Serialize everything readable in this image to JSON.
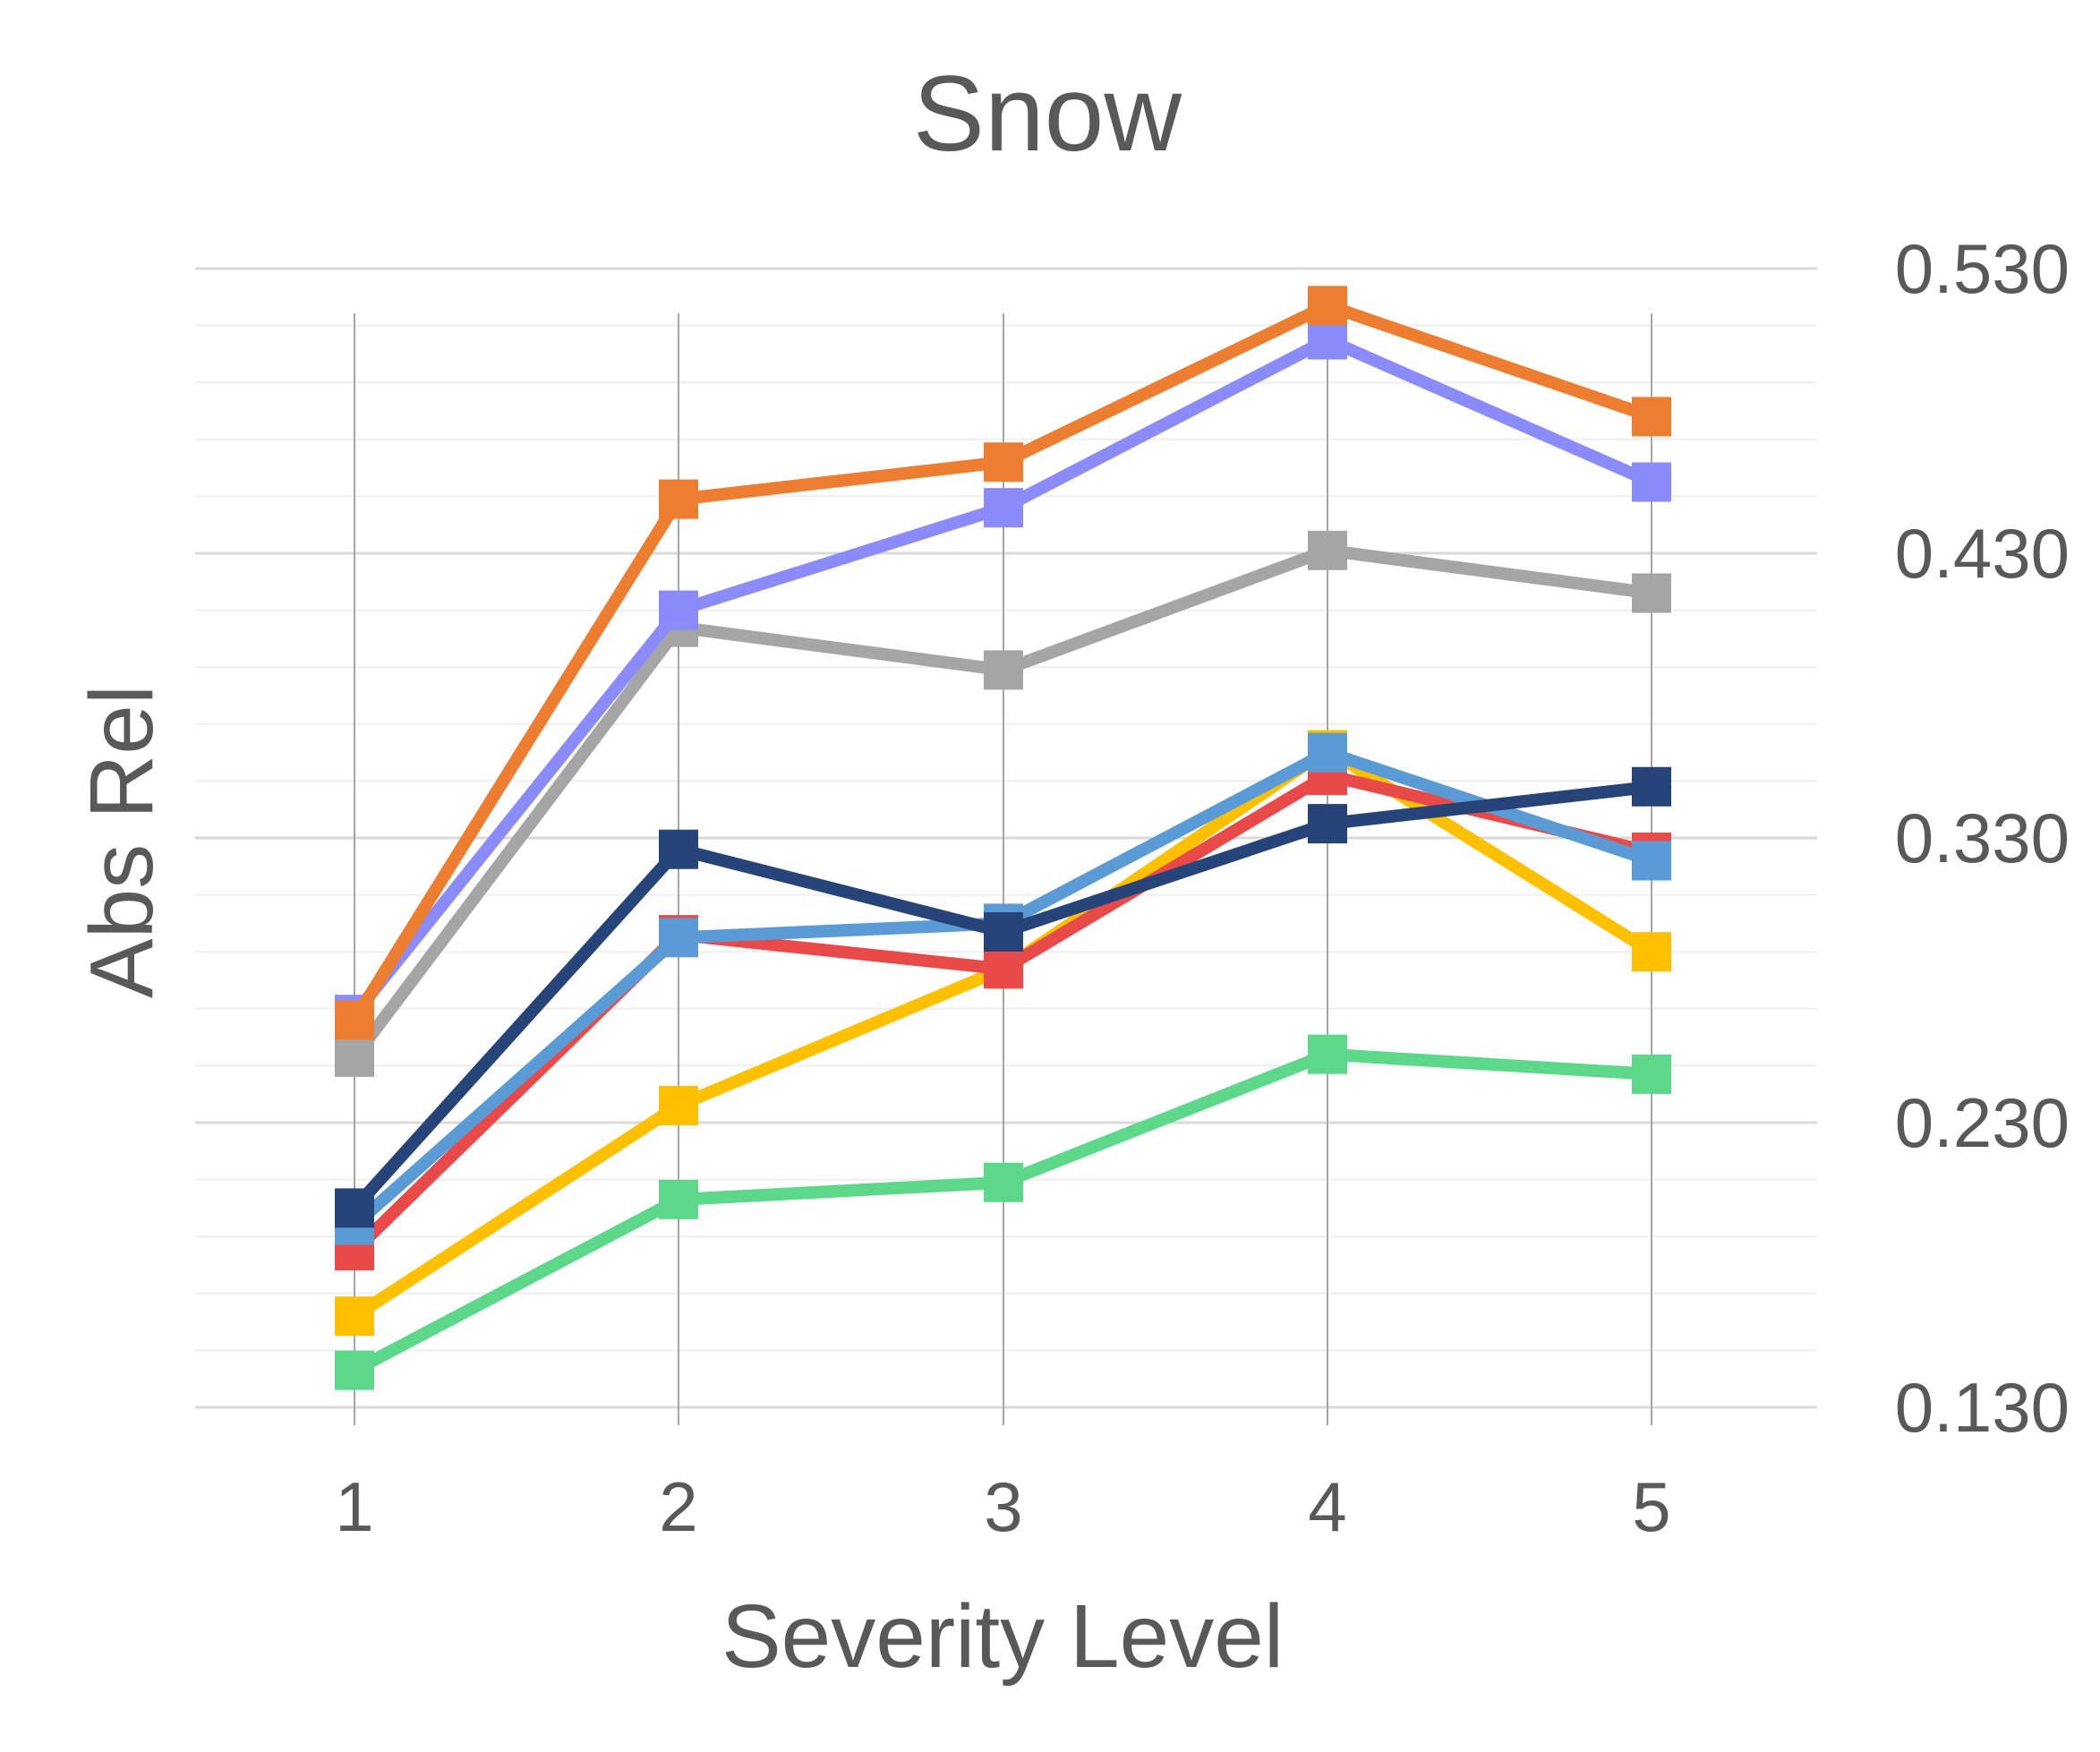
{
  "chart_data": {
    "type": "line",
    "title": "Snow",
    "xlabel": "Severity Level",
    "ylabel": "Abs Rel",
    "categories": [
      "1",
      "2",
      "3",
      "4",
      "5"
    ],
    "y_ticks": [
      "0.130",
      "0.230",
      "0.330",
      "0.430",
      "0.530"
    ],
    "ylim": [
      0.13,
      0.53
    ],
    "y_axis_side": "right",
    "grid": true,
    "legend": "none",
    "series": [
      {
        "color": "#ED7D31",
        "values": [
          0.266,
          0.449,
          0.462,
          0.517,
          0.478
        ]
      },
      {
        "color": "#8B8BFB",
        "values": [
          0.268,
          0.41,
          0.446,
          0.505,
          0.455
        ]
      },
      {
        "color": "#A5A5A5",
        "values": [
          0.253,
          0.404,
          0.389,
          0.431,
          0.416
        ]
      },
      {
        "color": "#264478",
        "values": [
          0.2,
          0.326,
          0.297,
          0.335,
          0.348
        ]
      },
      {
        "color": "#5B9BD5",
        "values": [
          0.194,
          0.295,
          0.3,
          0.36,
          0.322
        ]
      },
      {
        "color": "#E84A4A",
        "values": [
          0.185,
          0.296,
          0.284,
          0.352,
          0.325
        ]
      },
      {
        "color": "#FFC000",
        "values": [
          0.162,
          0.236,
          0.284,
          0.361,
          0.29
        ]
      },
      {
        "color": "#5DD88B",
        "values": [
          0.143,
          0.203,
          0.209,
          0.254,
          0.247
        ]
      }
    ]
  }
}
